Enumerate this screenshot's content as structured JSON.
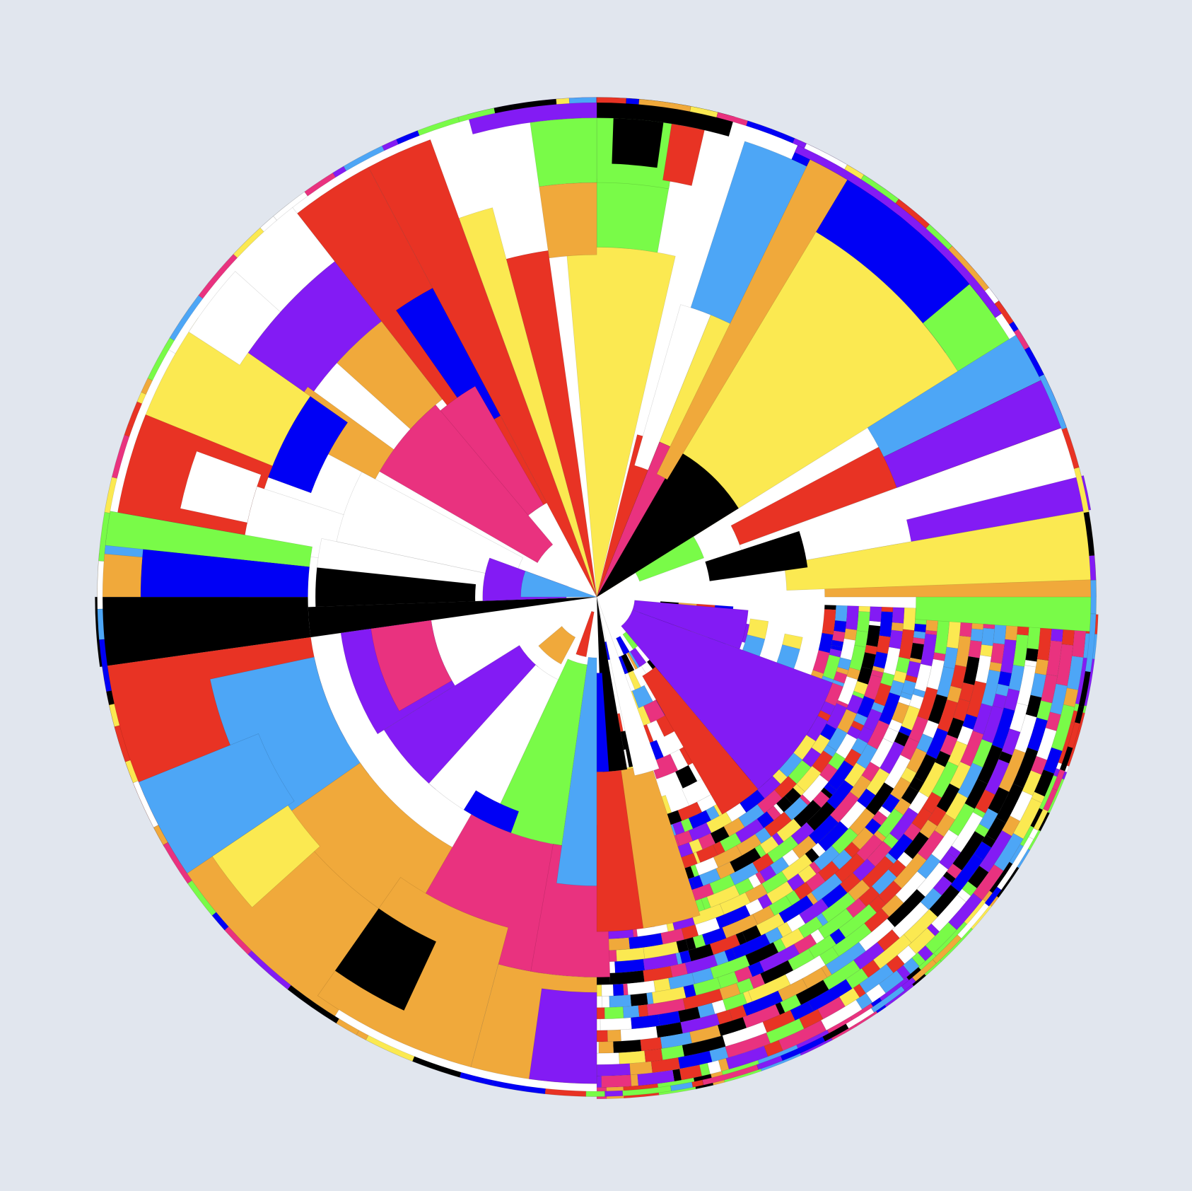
{
  "background": "#e1e6ee",
  "palette": {
    "red": "#e83324",
    "orange": "#f0a93b",
    "yellow": "#fbe951",
    "green": "#79fb48",
    "lightblue": "#4da6f6",
    "blue": "#0000f5",
    "purple": "#831bf4",
    "pink": "#e9327f",
    "black": "#000000",
    "white": "#ffffff"
  }
}
